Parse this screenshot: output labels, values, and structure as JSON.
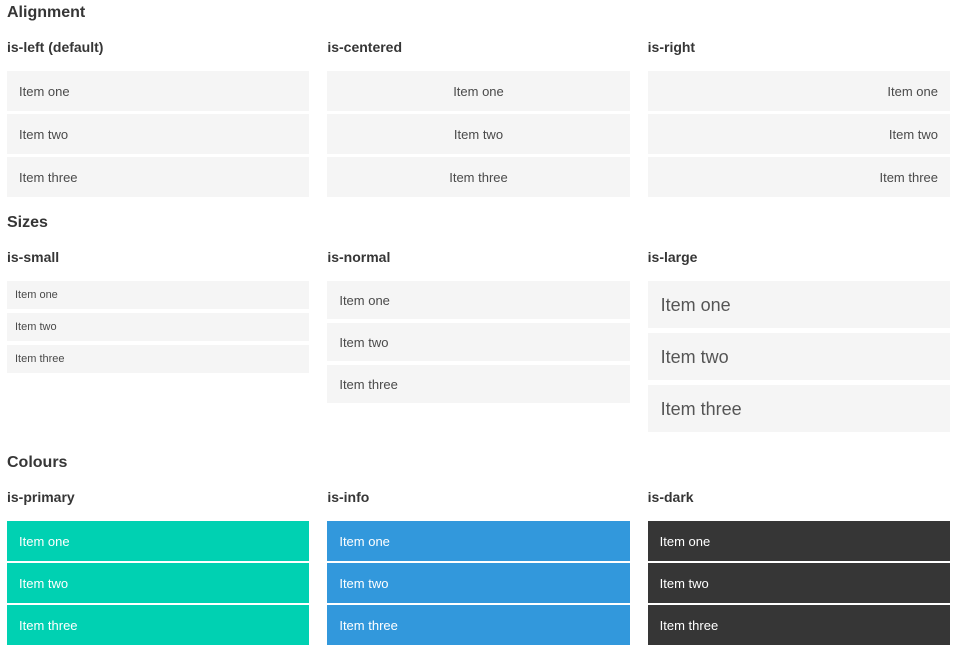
{
  "colors": {
    "primary": "#00d1b2",
    "info": "#3298dc",
    "dark": "#363636",
    "item_bg": "#f5f5f5",
    "item_text": "#4a4a4a",
    "heading_text": "#363636",
    "page_bg": "#ffffff"
  },
  "sections": [
    {
      "title": "Alignment",
      "columns": [
        {
          "heading": "is-left (default)",
          "items": [
            "Item one",
            "Item two",
            "Item three"
          ]
        },
        {
          "heading": "is-centered",
          "items": [
            "Item one",
            "Item two",
            "Item three"
          ]
        },
        {
          "heading": "is-right",
          "items": [
            "Item one",
            "Item two",
            "Item three"
          ]
        }
      ]
    },
    {
      "title": "Sizes",
      "columns": [
        {
          "heading": "is-small",
          "items": [
            "Item one",
            "Item two",
            "Item three"
          ]
        },
        {
          "heading": "is-normal",
          "items": [
            "Item one",
            "Item two",
            "Item three"
          ]
        },
        {
          "heading": "is-large",
          "items": [
            "Item one",
            "Item two",
            "Item three"
          ]
        }
      ]
    },
    {
      "title": "Colours",
      "columns": [
        {
          "heading": "is-primary",
          "items": [
            "Item one",
            "Item two",
            "Item three"
          ]
        },
        {
          "heading": "is-info",
          "items": [
            "Item one",
            "Item two",
            "Item three"
          ]
        },
        {
          "heading": "is-dark",
          "items": [
            "Item one",
            "Item two",
            "Item three"
          ]
        }
      ]
    }
  ]
}
